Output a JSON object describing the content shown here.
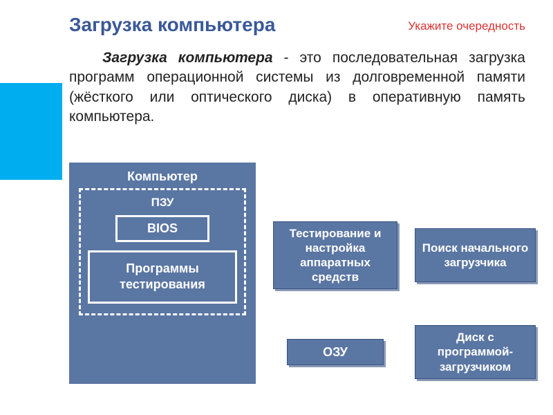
{
  "header": {
    "title": "Загрузка компьютера",
    "subtitle": "Укажите очередность"
  },
  "bodyText": {
    "lead": "Загрузка компьютера",
    "rest": " - это последовательная загрузка программ операционной системы из долговременной памяти (жёсткого или оптического диска) в оперативную память компьютера."
  },
  "diagram": {
    "computer": "Компьютер",
    "pzu": "ПЗУ",
    "bios": "BIOS",
    "testPrograms": "Программы тестирования"
  },
  "cards": {
    "test": "Тестирование и настройка аппаратных средств",
    "search": "Поиск начального загрузчика",
    "ozu": "ОЗУ",
    "disk": "Диск с программой-загрузчиком"
  },
  "colors": {
    "accentBlue": "#00aeef",
    "boxBlue": "#5a76a3",
    "titleBlue": "#3a5998",
    "red": "#d93030",
    "shadow": "#8a99b5",
    "white": "#ffffff"
  }
}
